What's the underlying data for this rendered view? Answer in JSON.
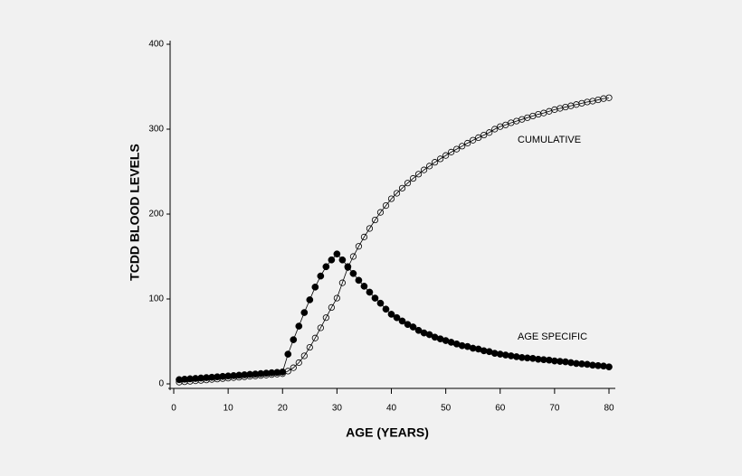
{
  "chart_data": {
    "type": "line",
    "xlabel": "AGE (YEARS)",
    "ylabel": "TCDD BLOOD LEVELS",
    "x": [
      1,
      2,
      3,
      4,
      5,
      6,
      7,
      8,
      9,
      10,
      11,
      12,
      13,
      14,
      15,
      16,
      17,
      18,
      19,
      20,
      21,
      22,
      23,
      24,
      25,
      26,
      27,
      28,
      29,
      30,
      31,
      32,
      33,
      34,
      35,
      36,
      37,
      38,
      39,
      40,
      41,
      42,
      43,
      44,
      45,
      46,
      47,
      48,
      49,
      50,
      51,
      52,
      53,
      54,
      55,
      56,
      57,
      58,
      59,
      60,
      61,
      62,
      63,
      64,
      65,
      66,
      67,
      68,
      69,
      70,
      71,
      72,
      73,
      74,
      75,
      76,
      77,
      78,
      79,
      80
    ],
    "series": [
      {
        "name": "CUMULATIVE",
        "color": "#000000",
        "marker": "open-circle",
        "values": [
          2,
          2.5,
          3,
          3.6,
          4.1,
          4.6,
          5.2,
          5.7,
          6.2,
          6.7,
          7.3,
          7.8,
          8.3,
          8.9,
          9.4,
          9.9,
          10.4,
          11,
          11.5,
          12,
          15,
          19,
          25,
          33,
          43,
          54,
          66,
          78,
          90,
          101,
          119,
          137,
          150,
          162,
          173,
          183,
          193,
          202,
          210,
          218,
          224.5,
          230.5,
          236.5,
          242,
          247,
          252,
          256.5,
          261,
          265,
          269,
          273,
          276.5,
          280,
          283.5,
          287,
          290,
          293,
          296,
          300,
          303,
          305,
          307.5,
          309.5,
          311.5,
          313.5,
          315.5,
          317.5,
          319,
          321,
          323,
          324.5,
          326,
          327.5,
          329,
          330.5,
          332,
          333,
          334.5,
          336,
          337
        ]
      },
      {
        "name": "AGE SPECIFIC",
        "color": "#000000",
        "marker": "filled-circle",
        "values": [
          5,
          5.5,
          6,
          6.4,
          6.9,
          7.4,
          7.8,
          8.3,
          8.8,
          9.3,
          9.7,
          10.2,
          10.7,
          11.2,
          11.6,
          12.1,
          12.6,
          13.1,
          13.5,
          14,
          35,
          52,
          68,
          84,
          99,
          114,
          127,
          138,
          146,
          153,
          146,
          138,
          130,
          122,
          115,
          108,
          101,
          95,
          88,
          82,
          78,
          74,
          70,
          67,
          63,
          60,
          58,
          55,
          53,
          51,
          49,
          47,
          45,
          44,
          42,
          41,
          39,
          38,
          36,
          35,
          34,
          33,
          32,
          31,
          30.5,
          30,
          29,
          28.5,
          28,
          27,
          26.5,
          26,
          25,
          24,
          23.5,
          23,
          22,
          21.5,
          21,
          20
        ]
      }
    ],
    "xlim": [
      0,
      80
    ],
    "xticks": [
      0,
      10,
      20,
      30,
      40,
      50,
      60,
      70,
      80
    ],
    "ylim": [
      0,
      400
    ],
    "yticks": [
      0,
      100,
      200,
      300,
      400
    ]
  }
}
